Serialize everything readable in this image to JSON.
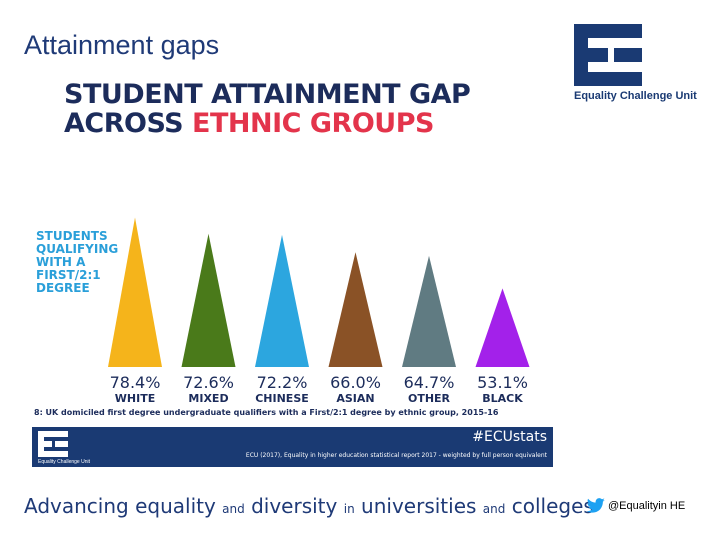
{
  "slide": {
    "title": "Attainment gaps",
    "tagline": {
      "w1": "Advancing equality",
      "w2": "and",
      "w3": "diversity",
      "w4": "in",
      "w5": "universities",
      "w6": "and",
      "w7": "colleges"
    },
    "twitter_handle": "@Equalityin HE",
    "logo_text": "Equality Challenge Unit",
    "twitter_icon": "twitter-bird-icon"
  },
  "infographic": {
    "headline_line1": "STUDENT ATTAINMENT GAP",
    "headline_line2_a": "ACROSS",
    "headline_line2_b": "ETHNIC GROUPS",
    "accent_color": "#e3344b",
    "headline_color": "#1c2c5b",
    "label_color": "#2a9fd9",
    "side_label": [
      "STUDENTS",
      "QUALIFYING",
      "WITH A",
      "FIRST/2:1",
      "DEGREE"
    ],
    "footnote": "8: UK domiciled first degree undergraduate qualifiers with a First/2:1 degree by ethnic group, 2015-16",
    "banner": {
      "hashtag": "#ECUstats",
      "citation": "ECU (2017), Equality in higher education statistical report 2017 - weighted by full person equivalent",
      "logo_text": "Equality Challenge Unit",
      "background": "#1a3a73"
    }
  },
  "chart_data": {
    "type": "bar",
    "categories": [
      "WHITE",
      "MIXED",
      "CHINESE",
      "ASIAN",
      "OTHER",
      "BLACK"
    ],
    "values": [
      78.4,
      72.6,
      72.2,
      66.0,
      64.7,
      53.1
    ],
    "value_labels": [
      "78.4%",
      "72.6%",
      "72.2%",
      "66.0%",
      "64.7%",
      "53.1%"
    ],
    "colors": [
      "#f5b41b",
      "#4a7a1a",
      "#2ca6df",
      "#8a5226",
      "#607b82",
      "#a321ea"
    ],
    "title": "STUDENT ATTAINMENT GAP ACROSS ETHNIC GROUPS",
    "ylabel": "STUDENTS QUALIFYING WITH A FIRST/2:1 DEGREE",
    "unit": "%",
    "ylim": [
      0,
      100
    ]
  }
}
